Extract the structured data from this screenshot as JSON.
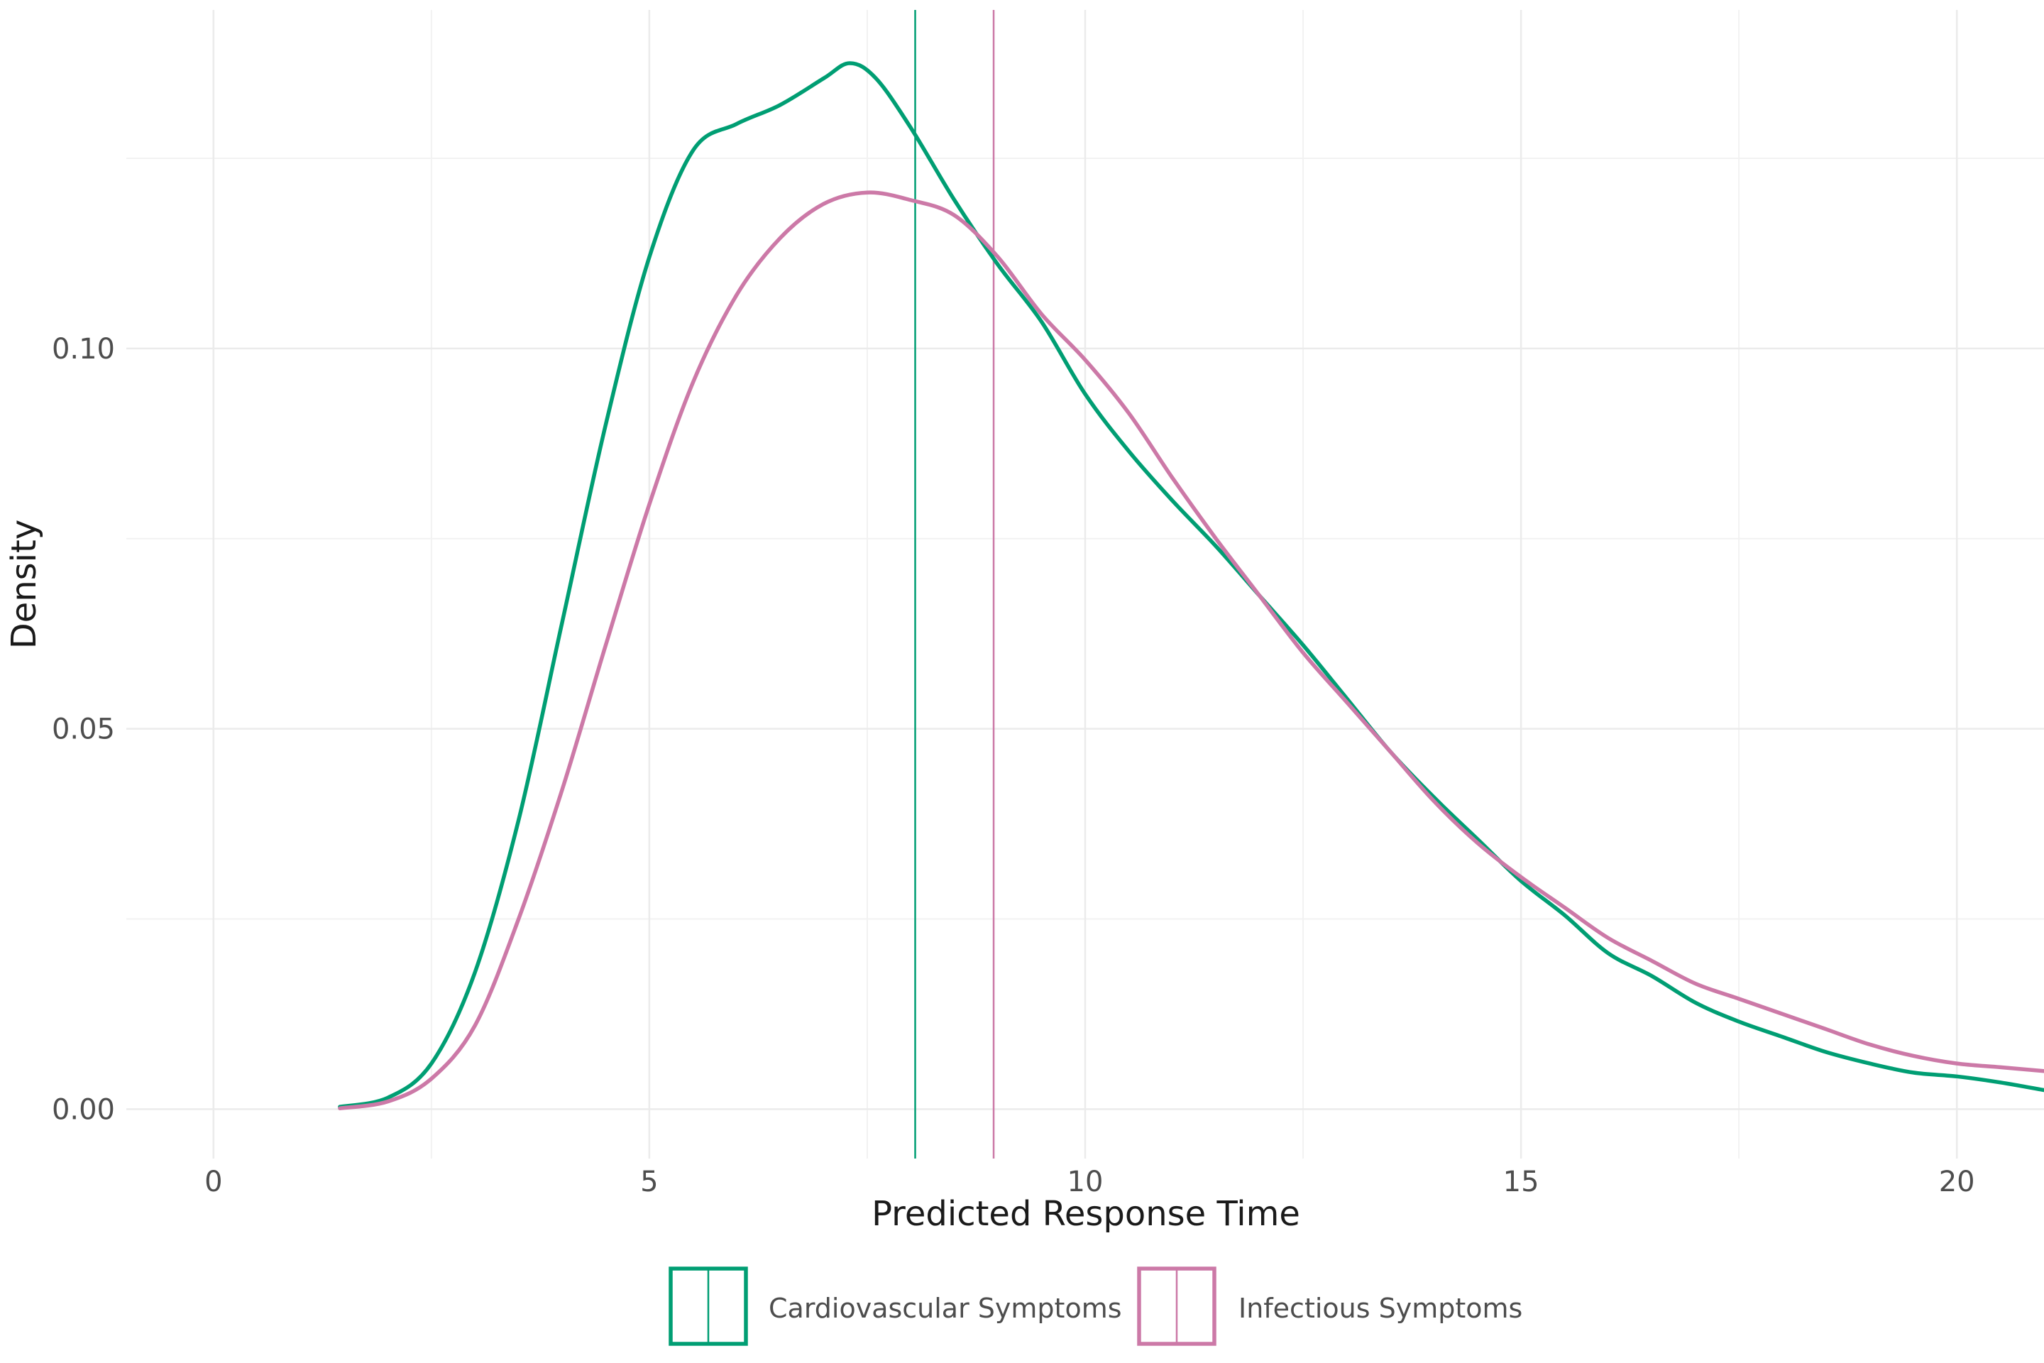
{
  "chart_data": {
    "type": "line",
    "subtype": "density",
    "title": "",
    "xlabel": "Predicted Response Time",
    "ylabel": "Density",
    "xlim": [
      -1,
      21
    ],
    "ylim": [
      -0.0065,
      0.1445
    ],
    "x_ticks": [
      0,
      5,
      10,
      15,
      20
    ],
    "x_tick_labels": [
      "0",
      "5",
      "10",
      "15",
      "20"
    ],
    "y_ticks": [
      0.0,
      0.05,
      0.1
    ],
    "y_tick_labels": [
      "0.00",
      "0.05",
      "0.10"
    ],
    "grid": true,
    "legend_position": "bottom",
    "series": [
      {
        "name": "Cardiovascular Symptoms",
        "color": "#009E73",
        "mean_line": 8.05,
        "points": [
          [
            1.45,
            0.0003
          ],
          [
            2.0,
            0.0015
          ],
          [
            2.5,
            0.006
          ],
          [
            3.0,
            0.018
          ],
          [
            3.5,
            0.038
          ],
          [
            4.0,
            0.064
          ],
          [
            4.5,
            0.09
          ],
          [
            5.0,
            0.112
          ],
          [
            5.5,
            0.126
          ],
          [
            6.0,
            0.1295
          ],
          [
            6.5,
            0.132
          ],
          [
            7.0,
            0.1355
          ],
          [
            7.3,
            0.1375
          ],
          [
            7.6,
            0.1355
          ],
          [
            8.0,
            0.129
          ],
          [
            8.5,
            0.1195
          ],
          [
            9.0,
            0.111
          ],
          [
            9.5,
            0.1035
          ],
          [
            10.0,
            0.094
          ],
          [
            10.5,
            0.0865
          ],
          [
            11.0,
            0.08
          ],
          [
            11.5,
            0.074
          ],
          [
            12.0,
            0.0675
          ],
          [
            12.5,
            0.061
          ],
          [
            13.0,
            0.054
          ],
          [
            13.5,
            0.047
          ],
          [
            14.0,
            0.041
          ],
          [
            14.5,
            0.0355
          ],
          [
            15.0,
            0.03
          ],
          [
            15.5,
            0.0255
          ],
          [
            16.0,
            0.0205
          ],
          [
            16.5,
            0.0175
          ],
          [
            17.0,
            0.014
          ],
          [
            17.5,
            0.0115
          ],
          [
            18.0,
            0.0095
          ],
          [
            18.5,
            0.0075
          ],
          [
            19.0,
            0.006
          ],
          [
            19.5,
            0.0048
          ],
          [
            20.0,
            0.0043
          ],
          [
            20.5,
            0.0035
          ],
          [
            21.0,
            0.0025
          ]
        ]
      },
      {
        "name": "Infectious Symptoms",
        "color": "#CC79A7",
        "mean_line": 8.95,
        "points": [
          [
            1.45,
            0.0001
          ],
          [
            2.0,
            0.001
          ],
          [
            2.5,
            0.004
          ],
          [
            3.0,
            0.011
          ],
          [
            3.5,
            0.025
          ],
          [
            4.0,
            0.042
          ],
          [
            4.5,
            0.061
          ],
          [
            5.0,
            0.0795
          ],
          [
            5.5,
            0.0955
          ],
          [
            6.0,
            0.107
          ],
          [
            6.5,
            0.1145
          ],
          [
            7.0,
            0.119
          ],
          [
            7.5,
            0.1205
          ],
          [
            8.0,
            0.1195
          ],
          [
            8.5,
            0.1175
          ],
          [
            9.0,
            0.112
          ],
          [
            9.5,
            0.1045
          ],
          [
            10.0,
            0.0985
          ],
          [
            10.5,
            0.0915
          ],
          [
            11.0,
            0.083
          ],
          [
            11.5,
            0.075
          ],
          [
            12.0,
            0.0675
          ],
          [
            12.5,
            0.06
          ],
          [
            13.0,
            0.0535
          ],
          [
            13.5,
            0.047
          ],
          [
            14.0,
            0.0405
          ],
          [
            14.5,
            0.035
          ],
          [
            15.0,
            0.0305
          ],
          [
            15.5,
            0.0265
          ],
          [
            16.0,
            0.0225
          ],
          [
            16.5,
            0.0195
          ],
          [
            17.0,
            0.0165
          ],
          [
            17.5,
            0.0145
          ],
          [
            18.0,
            0.0125
          ],
          [
            18.5,
            0.0105
          ],
          [
            19.0,
            0.0085
          ],
          [
            19.5,
            0.007
          ],
          [
            20.0,
            0.006
          ],
          [
            20.5,
            0.0055
          ],
          [
            21.0,
            0.005
          ]
        ]
      }
    ]
  }
}
